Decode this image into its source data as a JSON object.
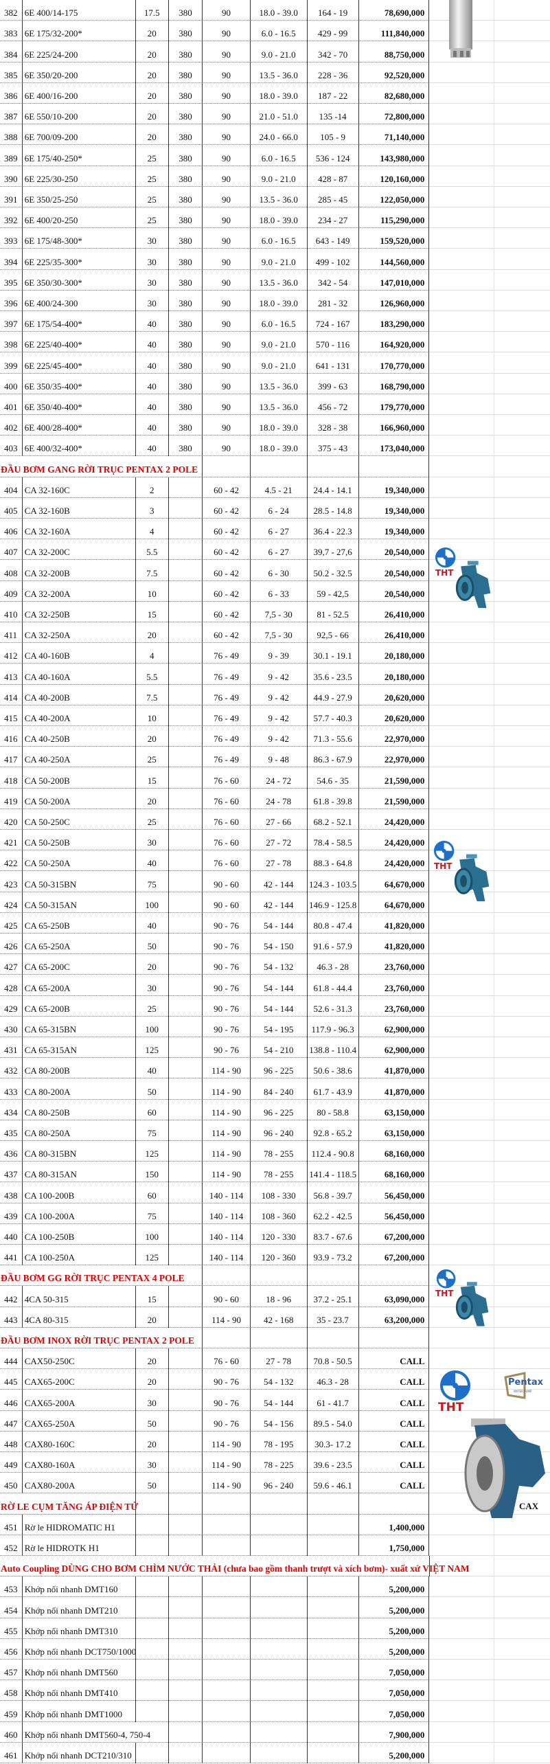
{
  "logos": {
    "tht": "THT",
    "pentax": "Pentax",
    "pentax_sub": "WATER PUMP",
    "cax_label": "CAX"
  },
  "colors": {
    "section_title": "#e00000",
    "pump_blue": "#2a6f8f",
    "logo_blue": "#1e6fc8"
  },
  "sections": [
    {
      "title": "",
      "rows": [
        [
          "382",
          "6E 400/14-175",
          "17.5",
          "380",
          "90",
          "18.0 - 39.0",
          "164 - 19",
          "78,690,000"
        ],
        [
          "383",
          "6E 175/32-200*",
          "20",
          "380",
          "90",
          "6.0 - 16.5",
          "429 - 99",
          "111,840,000"
        ],
        [
          "384",
          "6E 225/24-200",
          "20",
          "380",
          "90",
          "9.0 - 21.0",
          "342 - 70",
          "88,750,000"
        ],
        [
          "385",
          "6E 350/20-200",
          "20",
          "380",
          "90",
          "13.5 - 36.0",
          "228 - 36",
          "92,520,000"
        ],
        [
          "386",
          "6E 400/16-200",
          "20",
          "380",
          "90",
          "18.0 - 39.0",
          "187 - 22",
          "82,680,000"
        ],
        [
          "387",
          "6E 550/10-200",
          "20",
          "380",
          "90",
          "21.0 - 51.0",
          "135 -14",
          "72,800,000"
        ],
        [
          "388",
          "6E 700/09-200",
          "20",
          "380",
          "90",
          "24.0 - 66.0",
          "105 - 9",
          "71,140,000"
        ],
        [
          "389",
          "6E 175/40-250*",
          "25",
          "380",
          "90",
          "6.0 - 16.5",
          "536 - 124",
          "143,980,000"
        ],
        [
          "390",
          "6E 225/30-250",
          "25",
          "380",
          "90",
          "9.0 - 21.0",
          "428 - 87",
          "120,160,000"
        ],
        [
          "391",
          "6E 350/25-250",
          "25",
          "380",
          "90",
          "13.5 - 36.0",
          "285 - 45",
          "122,050,000"
        ],
        [
          "392",
          "6E 400/20-250",
          "25",
          "380",
          "90",
          "18.0 - 39.0",
          "234 - 27",
          "115,290,000"
        ],
        [
          "393",
          "6E 175/48-300*",
          "30",
          "380",
          "90",
          "6.0 - 16.5",
          "643 - 149",
          "159,520,000"
        ],
        [
          "394",
          "6E 225/35-300*",
          "30",
          "380",
          "90",
          "9.0 - 21.0",
          "499 - 102",
          "144,560,000"
        ],
        [
          "395",
          "6E 350/30-300*",
          "30",
          "380",
          "90",
          "13.5 - 36.0",
          "342 - 54",
          "147,010,000"
        ],
        [
          "396",
          "6E 400/24-300",
          "30",
          "380",
          "90",
          "18.0 - 39.0",
          "281 - 32",
          "126,960,000"
        ],
        [
          "397",
          "6E 175/54-400*",
          "40",
          "380",
          "90",
          "6.0 - 16.5",
          "724 - 167",
          "183,290,000"
        ],
        [
          "398",
          "6E 225/40-400*",
          "40",
          "380",
          "90",
          "9.0 - 21.0",
          "570 - 116",
          "164,920,000"
        ],
        [
          "399",
          "6E 225/45-400*",
          "40",
          "380",
          "90",
          "9.0 - 21.0",
          "641 - 131",
          "170,770,000"
        ],
        [
          "400",
          "6E 350/35-400*",
          "40",
          "380",
          "90",
          "13.5 - 36.0",
          "399 - 63",
          "168,790,000"
        ],
        [
          "401",
          "6E 350/40-400*",
          "40",
          "380",
          "90",
          "13.5 - 36.0",
          "456 - 72",
          "179,770,000"
        ],
        [
          "402",
          "6E 400/28-400*",
          "40",
          "380",
          "90",
          "18.0 - 39.0",
          "328 - 38",
          "166,960,000"
        ],
        [
          "403",
          "6E 400/32-400*",
          "40",
          "380",
          "90",
          "18.0 - 39.0",
          "375 - 43",
          "173,040,000"
        ]
      ]
    },
    {
      "title": "ĐẦU BƠM GANG RỜI TRỤC PENTAX 2 POLE",
      "rows": [
        [
          "404",
          "CA 32-160C",
          "2",
          "",
          "60 - 42",
          "4.5 - 21",
          "24.4 - 14.1",
          "19,340,000"
        ],
        [
          "405",
          "CA 32-160B",
          "3",
          "",
          "60 - 42",
          "6 - 24",
          "28.5 - 14.8",
          "19,340,000"
        ],
        [
          "406",
          "CA 32-160A",
          "4",
          "",
          "60 - 42",
          "6 - 27",
          "36.4 - 22.3",
          "19,340,000"
        ],
        [
          "407",
          "CA 32-200C",
          "5.5",
          "",
          "60 - 42",
          "6 - 27",
          "39,7 - 27,6",
          "20,540,000"
        ],
        [
          "408",
          "CA 32-200B",
          "7.5",
          "",
          "60 - 42",
          "6 - 30",
          "50.2 - 32.5",
          "20,540,000"
        ],
        [
          "409",
          "CA 32-200A",
          "10",
          "",
          "60 - 42",
          "6 - 33",
          "59 - 42,5",
          "20,540,000"
        ],
        [
          "410",
          "CA 32-250B",
          "15",
          "",
          "60 - 42",
          "7,5 - 30",
          "81 - 52.5",
          "26,410,000"
        ],
        [
          "411",
          "CA 32-250A",
          "20",
          "",
          "60 - 42",
          "7,5 - 30",
          "92,5 - 66",
          "26,410,000"
        ],
        [
          "412",
          "CA 40-160B",
          "4",
          "",
          "76 - 49",
          "9 - 39",
          "30.1 - 19.1",
          "20,180,000"
        ],
        [
          "413",
          "CA 40-160A",
          "5.5",
          "",
          "76 - 49",
          "9 - 42",
          "35.6 - 23.5",
          "20,180,000"
        ],
        [
          "414",
          "CA 40-200B",
          "7.5",
          "",
          "76 - 49",
          "9 - 42",
          "44.9 - 27.9",
          "20,620,000"
        ],
        [
          "415",
          "CA 40-200A",
          "10",
          "",
          "76 - 49",
          "9 - 42",
          "57.7 - 40.3",
          "20,620,000"
        ],
        [
          "416",
          "CA 40-250B",
          "20",
          "",
          "76 - 49",
          "9 - 42",
          "71.3 - 55.6",
          "22,970,000"
        ],
        [
          "417",
          "CA 40-250A",
          "25",
          "",
          "76 - 49",
          "9 - 48",
          "86.3 - 67.9",
          "22,970,000"
        ],
        [
          "418",
          "CA 50-200B",
          "15",
          "",
          "76 - 60",
          "24 - 72",
          "54.6 - 35",
          "21,590,000"
        ],
        [
          "419",
          "CA 50-200A",
          "20",
          "",
          "76 - 60",
          "24 - 78",
          "61.8 - 39.8",
          "21,590,000"
        ],
        [
          "420",
          "CA 50-250C",
          "25",
          "",
          "76 - 60",
          "27 - 66",
          "68.2 - 52.1",
          "24,420,000"
        ],
        [
          "421",
          "CA 50-250B",
          "30",
          "",
          "76 - 60",
          "27 - 72",
          "78.4 - 58.5",
          "24,420,000"
        ],
        [
          "422",
          "CA 50-250A",
          "40",
          "",
          "76 - 60",
          "27 - 78",
          "88.3 - 64.8",
          "24,420,000"
        ],
        [
          "423",
          "CA 50-315BN",
          "75",
          "",
          "90 - 60",
          "42 - 144",
          "124.3 - 103.5",
          "64,670,000"
        ],
        [
          "424",
          "CA 50-315AN",
          "100",
          "",
          "90 - 60",
          "42 - 144",
          "146.9 - 125.8",
          "64,670,000"
        ],
        [
          "425",
          "CA 65-250B",
          "40",
          "",
          "90 - 76",
          "54 - 144",
          "80.8 - 47.4",
          "41,820,000"
        ],
        [
          "426",
          "CA 65-250A",
          "50",
          "",
          "90 - 76",
          "54 - 150",
          "91.6 - 57.9",
          "41,820,000"
        ],
        [
          "427",
          "CA 65-200C",
          "20",
          "",
          "90 - 76",
          "54 - 132",
          "46.3 - 28",
          "23,760,000"
        ],
        [
          "428",
          "CA 65-200A",
          "30",
          "",
          "90 - 76",
          "54 - 144",
          "61.8 - 44.4",
          "23,760,000"
        ],
        [
          "429",
          "CA 65-200B",
          "25",
          "",
          "90 - 76",
          "54 - 144",
          "52.6 - 31.3",
          "23,760,000"
        ],
        [
          "430",
          "CA 65-315BN",
          "100",
          "",
          "90 - 76",
          "54 - 195",
          "117.9 - 96.3",
          "62,900,000"
        ],
        [
          "431",
          "CA 65-315AN",
          "125",
          "",
          "90 - 76",
          "54 - 210",
          "138.8 - 110.4",
          "62,900,000"
        ],
        [
          "432",
          "CA 80-200B",
          "40",
          "",
          "114 - 90",
          "96 - 225",
          "50.6 - 38.6",
          "41,870,000"
        ],
        [
          "433",
          "CA 80-200A",
          "50",
          "",
          "114 - 90",
          "84 - 240",
          "61.7 - 43.9",
          "41,870,000"
        ],
        [
          "434",
          "CA 80-250B",
          "60",
          "",
          "114 - 90",
          "96 - 225",
          "80 - 58.8",
          "63,150,000"
        ],
        [
          "435",
          "CA 80-250A",
          "75",
          "",
          "114 - 90",
          "96 - 240",
          "92.8 - 65.2",
          "63,150,000"
        ],
        [
          "436",
          "CA 80-315BN",
          "125",
          "",
          "114 - 90",
          "78 - 255",
          "112.4 - 90.8",
          "68,160,000"
        ],
        [
          "437",
          "CA 80-315AN",
          "150",
          "",
          "114 - 90",
          "78 - 255",
          "141.4 - 118.5",
          "68,160,000"
        ],
        [
          "438",
          "CA 100-200B",
          "60",
          "",
          "140 - 114",
          "108 - 330",
          "56.8 - 39.7",
          "56,450,000"
        ],
        [
          "439",
          "CA 100-200A",
          "75",
          "",
          "140 - 114",
          "108 - 360",
          "62.2 - 42.5",
          "56,450,000"
        ],
        [
          "440",
          "CA 100-250B",
          "100",
          "",
          "140 - 114",
          "120 - 330",
          "83.7 - 67.6",
          "67,200,000"
        ],
        [
          "441",
          "CA 100-250A",
          "125",
          "",
          "140 - 114",
          "120 - 360",
          "93.9 - 73.2",
          "67,200,000"
        ]
      ]
    },
    {
      "title": "ĐẦU BƠM GG RỜI TRỤC PENTAX 4 POLE",
      "rows": [
        [
          "442",
          "4CA 50-315",
          "15",
          "",
          "90 - 60",
          "18 - 96",
          "37.2 - 25.1",
          "63,090,000"
        ],
        [
          "443",
          "4CA 80-315",
          "20",
          "",
          "114 - 90",
          "42 - 168",
          "35 - 23.7",
          "63,200,000"
        ]
      ]
    },
    {
      "title": "ĐẦU BƠM INOX RỜI TRỤC PENTAX 2 POLE",
      "rows": [
        [
          "444",
          "CAX50-250C",
          "20",
          "",
          "76 - 60",
          "27 - 78",
          "70.8 - 50.5",
          "CALL"
        ],
        [
          "445",
          "CAX65-200C",
          "20",
          "",
          "90 - 76",
          "54 - 132",
          "46.3 - 28",
          "CALL"
        ],
        [
          "446",
          "CAX65-200A",
          "30",
          "",
          "90 - 76",
          "54 - 144",
          "61 - 41.7",
          "CALL"
        ],
        [
          "447",
          "CAX65-250A",
          "50",
          "",
          "90 - 76",
          "54 - 156",
          "89.5 - 54.0",
          "CALL"
        ],
        [
          "448",
          "CAX80-160C",
          "20",
          "",
          "114 - 90",
          "78 - 195",
          "30.3- 17.2",
          "CALL"
        ],
        [
          "449",
          "CAX80-160A",
          "30",
          "",
          "114 - 90",
          "78 - 225",
          "39.6 - 23.5",
          "CALL"
        ],
        [
          "450",
          "CAX80-200A",
          "50",
          "",
          "114 - 90",
          "96 - 240",
          "59.6 - 46.1",
          "CALL"
        ]
      ]
    },
    {
      "title": "RỜ LE CỤM TĂNG ÁP ĐIỆN TỬ",
      "rows": [
        [
          "451",
          "Rờ le HIDROMATIC H1",
          "",
          "",
          "",
          "",
          "",
          "1,400,000"
        ],
        [
          "452",
          "Rờ le HIDROTK H1",
          "",
          "",
          "",
          "",
          "",
          "1,750,000"
        ]
      ]
    },
    {
      "title": "Auto Coupling DÙNG CHO BƠM CHÌM NƯỚC THẢI  (chưa bao gồm thanh trượt và xích bơm)- xuất xứ VIỆT NAM",
      "rows": [
        [
          "453",
          "Khớp nối nhanh DMT160",
          "",
          "",
          "",
          "",
          "",
          "5,200,000"
        ],
        [
          "454",
          "Khớp nối nhanh DMT210",
          "",
          "",
          "",
          "",
          "",
          "5,200,000"
        ],
        [
          "455",
          "Khớp nối nhanh DMT310",
          "",
          "",
          "",
          "",
          "",
          "5,200,000"
        ],
        [
          "456",
          "Khớp nối nhanh DCT750/1000",
          "",
          "",
          "",
          "",
          "",
          "5,200,000"
        ],
        [
          "457",
          "Khớp nối nhanh DMT560",
          "",
          "",
          "",
          "",
          "",
          "7,050,000"
        ],
        [
          "458",
          "Khớp nối nhanh DMT410",
          "",
          "",
          "",
          "",
          "",
          "7,050,000"
        ],
        [
          "459",
          "Khớp nối nhanh DMT1000",
          "",
          "",
          "",
          "",
          "",
          "7,050,000"
        ],
        [
          "460",
          "Khớp nối nhanh DMT560-4, 750-4",
          "",
          "",
          "",
          "",
          "",
          "7,900,000"
        ],
        [
          "461",
          "Khớp nối nhanh DCT210/310",
          "",
          "",
          "",
          "",
          "",
          "5,200,000"
        ]
      ]
    }
  ]
}
